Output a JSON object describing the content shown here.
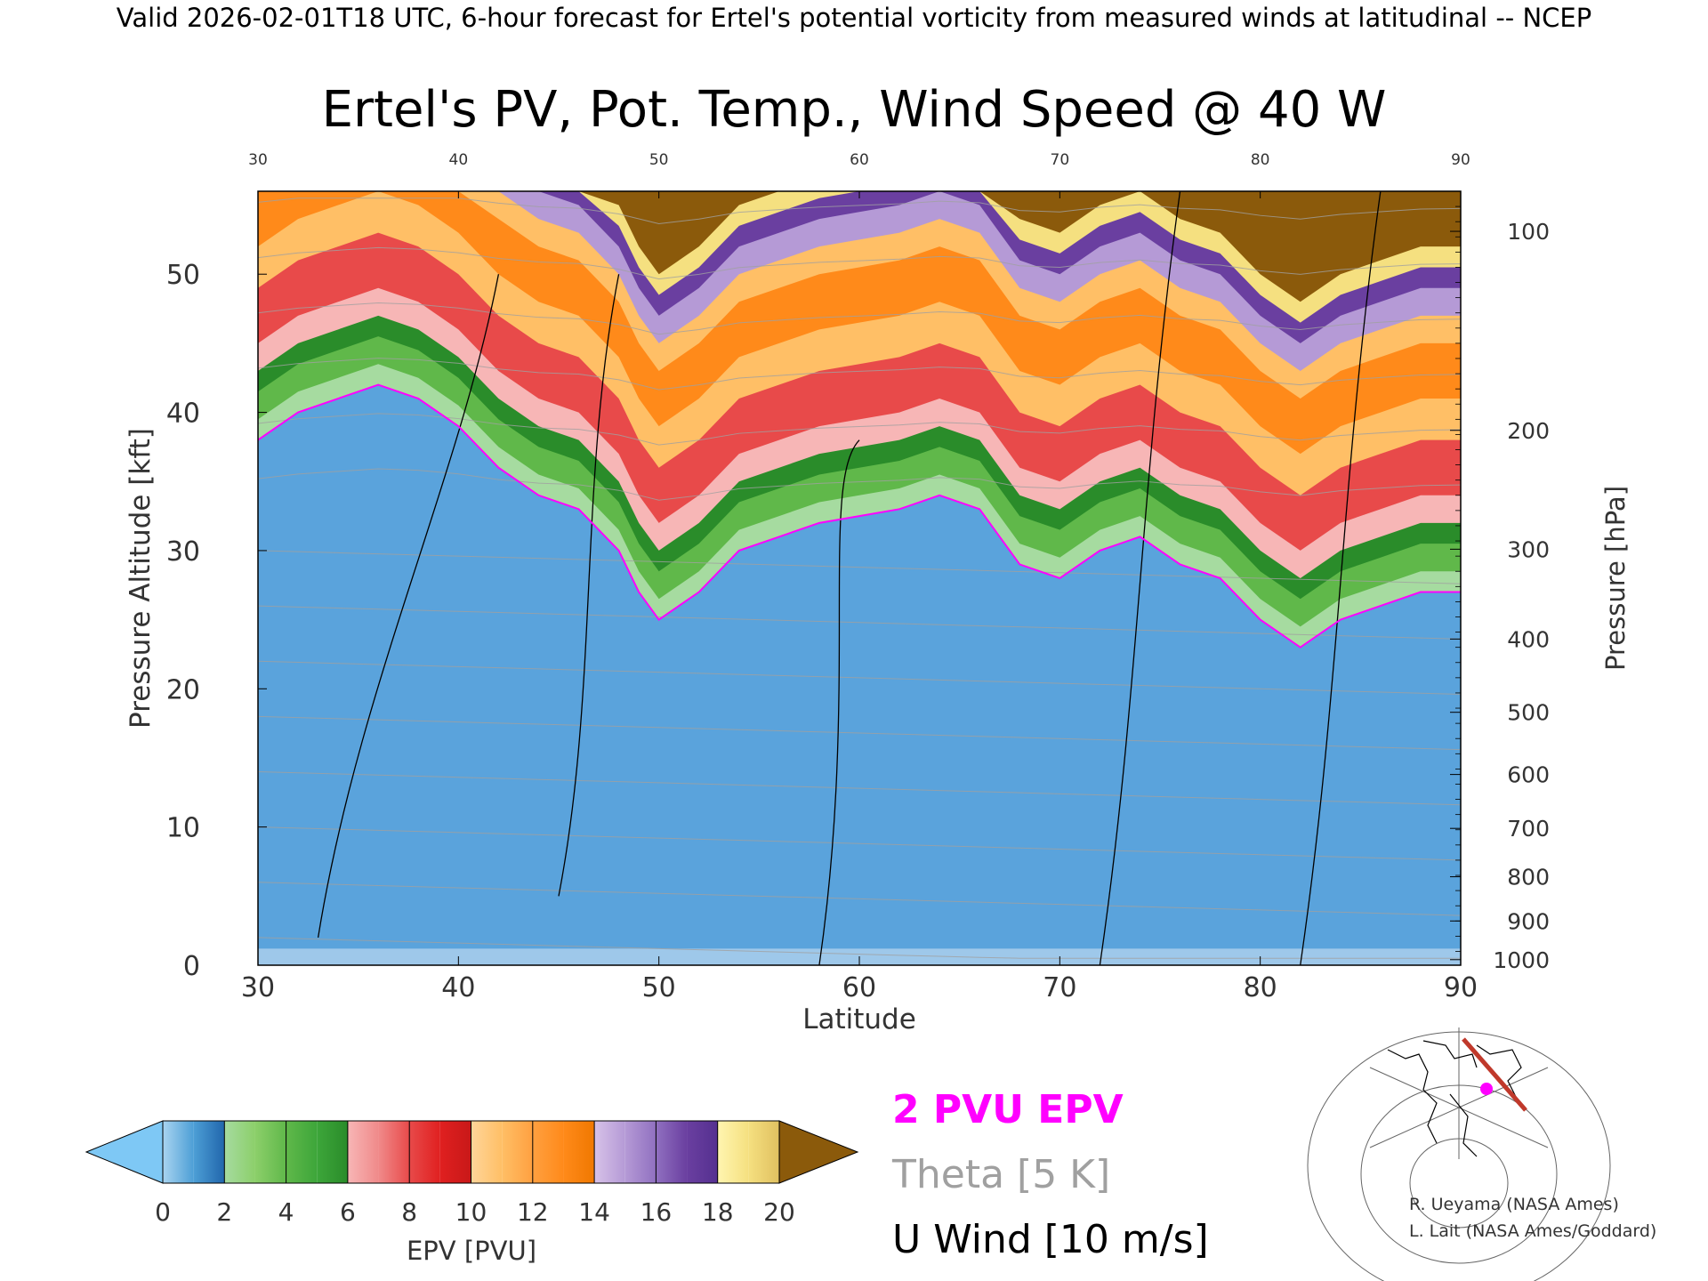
{
  "header": "Valid 2026-02-01T18 UTC, 6-hour forecast for Ertel's potential vorticity from measured winds at latitudinal -- NCEP",
  "chart_data": {
    "type": "heatmap",
    "title": "Ertel's PV, Pot. Temp., Wind Speed @ 40 W",
    "xlabel": "Latitude",
    "ylabel": "Pressure Altitude [kft]",
    "y2label": "Pressure [hPa]",
    "xlim": [
      30,
      90
    ],
    "ylim": [
      0,
      56
    ],
    "x_ticks": [
      "30",
      "40",
      "50",
      "60",
      "70",
      "80",
      "90"
    ],
    "top_x_ticks": [
      "30",
      "40",
      "50",
      "60",
      "70",
      "80",
      "90"
    ],
    "y_ticks": [
      "0",
      "10",
      "20",
      "30",
      "40",
      "50"
    ],
    "pressure_ticks": [
      {
        "label": "100",
        "alt": 53.1
      },
      {
        "label": "200",
        "alt": 38.7
      },
      {
        "label": "300",
        "alt": 30.1
      },
      {
        "label": "400",
        "alt": 23.6
      },
      {
        "label": "500",
        "alt": 18.3
      },
      {
        "label": "600",
        "alt": 13.8
      },
      {
        "label": "700",
        "alt": 9.9
      },
      {
        "label": "800",
        "alt": 6.4
      },
      {
        "label": "900",
        "alt": 3.2
      },
      {
        "label": "1000",
        "alt": 0.4
      }
    ],
    "tropopause_2pvu": [
      [
        30,
        38
      ],
      [
        32,
        40
      ],
      [
        34,
        41
      ],
      [
        36,
        42
      ],
      [
        38,
        41
      ],
      [
        40,
        39
      ],
      [
        42,
        36
      ],
      [
        44,
        34
      ],
      [
        46,
        33
      ],
      [
        48,
        30
      ],
      [
        49,
        27
      ],
      [
        50,
        25
      ],
      [
        52,
        27
      ],
      [
        54,
        30
      ],
      [
        56,
        31
      ],
      [
        58,
        32
      ],
      [
        60,
        32.5
      ],
      [
        62,
        33
      ],
      [
        64,
        34
      ],
      [
        66,
        33
      ],
      [
        68,
        29
      ],
      [
        70,
        28
      ],
      [
        72,
        30
      ],
      [
        74,
        31
      ],
      [
        76,
        29
      ],
      [
        78,
        28
      ],
      [
        80,
        25
      ],
      [
        82,
        23
      ],
      [
        84,
        25
      ],
      [
        86,
        26
      ],
      [
        88,
        27
      ],
      [
        90,
        27
      ]
    ],
    "colorbar": {
      "label": "EPV [PVU]",
      "ticks": [
        "0",
        "2",
        "4",
        "6",
        "8",
        "10",
        "12",
        "14",
        "16",
        "18",
        "20"
      ],
      "under_color": "#7ec8f5",
      "over_color": "#8b5a0b",
      "bins": [
        {
          "from": 0,
          "to": 1,
          "colors": [
            "#a9d4f0",
            "#4d9fd6"
          ]
        },
        {
          "from": 1,
          "to": 2,
          "colors": [
            "#4d9fd6",
            "#2166ac"
          ]
        },
        {
          "from": 2,
          "to": 3,
          "colors": [
            "#a6dba0",
            "#8ccf6a"
          ]
        },
        {
          "from": 3,
          "to": 4,
          "colors": [
            "#8ccf6a",
            "#60b84a"
          ]
        },
        {
          "from": 4,
          "to": 5,
          "colors": [
            "#60b84a",
            "#3da63a"
          ]
        },
        {
          "from": 5,
          "to": 6,
          "colors": [
            "#3da63a",
            "#2a8c2a"
          ]
        },
        {
          "from": 6,
          "to": 7,
          "colors": [
            "#f7b6b6",
            "#f08a8a"
          ]
        },
        {
          "from": 7,
          "to": 8,
          "colors": [
            "#f08a8a",
            "#e84a4a"
          ]
        },
        {
          "from": 8,
          "to": 9,
          "colors": [
            "#e84a4a",
            "#e02020"
          ]
        },
        {
          "from": 9,
          "to": 10,
          "colors": [
            "#e02020",
            "#c81818"
          ]
        },
        {
          "from": 10,
          "to": 11,
          "colors": [
            "#ffd59a",
            "#ffbf66"
          ]
        },
        {
          "from": 11,
          "to": 12,
          "colors": [
            "#ffbf66",
            "#ffa040"
          ]
        },
        {
          "from": 12,
          "to": 13,
          "colors": [
            "#ffa040",
            "#ff8a1a"
          ]
        },
        {
          "from": 13,
          "to": 14,
          "colors": [
            "#ff8a1a",
            "#f07800"
          ]
        },
        {
          "from": 14,
          "to": 15,
          "colors": [
            "#d7c2e8",
            "#b59ad6"
          ]
        },
        {
          "from": 15,
          "to": 16,
          "colors": [
            "#b59ad6",
            "#9070c0"
          ]
        },
        {
          "from": 16,
          "to": 17,
          "colors": [
            "#9070c0",
            "#6a3fa0"
          ]
        },
        {
          "from": 17,
          "to": 18,
          "colors": [
            "#6a3fa0",
            "#553090"
          ]
        },
        {
          "from": 18,
          "to": 19,
          "colors": [
            "#fff5b0",
            "#f5e080"
          ]
        },
        {
          "from": 19,
          "to": 20,
          "colors": [
            "#f5e080",
            "#e0c060"
          ]
        }
      ]
    },
    "legend": [
      {
        "label": "2 PVU EPV",
        "color": "#ff00ff"
      },
      {
        "label": "Theta [5 K]",
        "color": "#a0a0a0"
      },
      {
        "label": "U Wind [10 m/s]",
        "color": "#000000"
      }
    ]
  },
  "credits": {
    "line1": "R. Ueyama (NASA Ames)",
    "line2": "L. Lait (NASA Ames/Goddard)"
  },
  "inset_map": {
    "land_color": "#ffffff",
    "track_color": "#c0392b",
    "marker_color": "#ff00ff"
  }
}
